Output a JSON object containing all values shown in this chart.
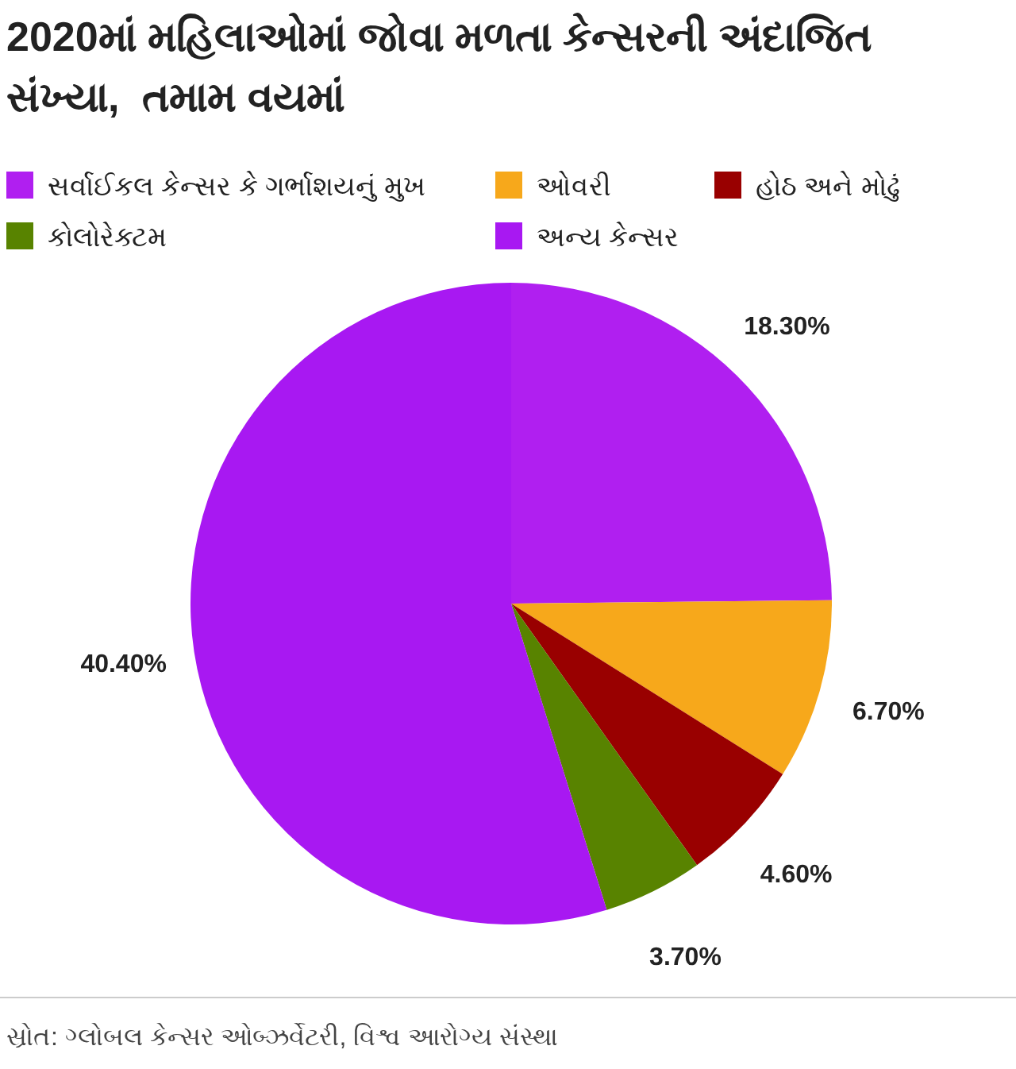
{
  "chart_data": {
    "type": "pie",
    "title": "2020માં મહિલાઓમાં જોવા મળતા કેન્સરની અંદાજિત સંખ્યા,  તમામ વયમાં",
    "categories": [
      "સર્વાઈકલ કેન્સર કે ગર્ભાશયનું મુખ",
      "ઓવરી",
      "હોઠ અને મોઢું",
      "કોલોરેક્ટમ",
      "અન્ય કેન્સર"
    ],
    "values": [
      18.3,
      6.7,
      4.6,
      3.7,
      40.4
    ],
    "value_labels": [
      "18.30%",
      "6.70%",
      "4.60%",
      "3.70%",
      "40.40%"
    ],
    "colors": [
      "#b01ff0",
      "#f7a81b",
      "#990000",
      "#588300",
      "#a818f2"
    ],
    "legend": "top",
    "annotations": [
      "સ્રોત: ગ્લોબલ કેન્સર ઓબ્ઝર્વેટરી, વિશ્વ આરોગ્ય સંસ્થા"
    ]
  }
}
